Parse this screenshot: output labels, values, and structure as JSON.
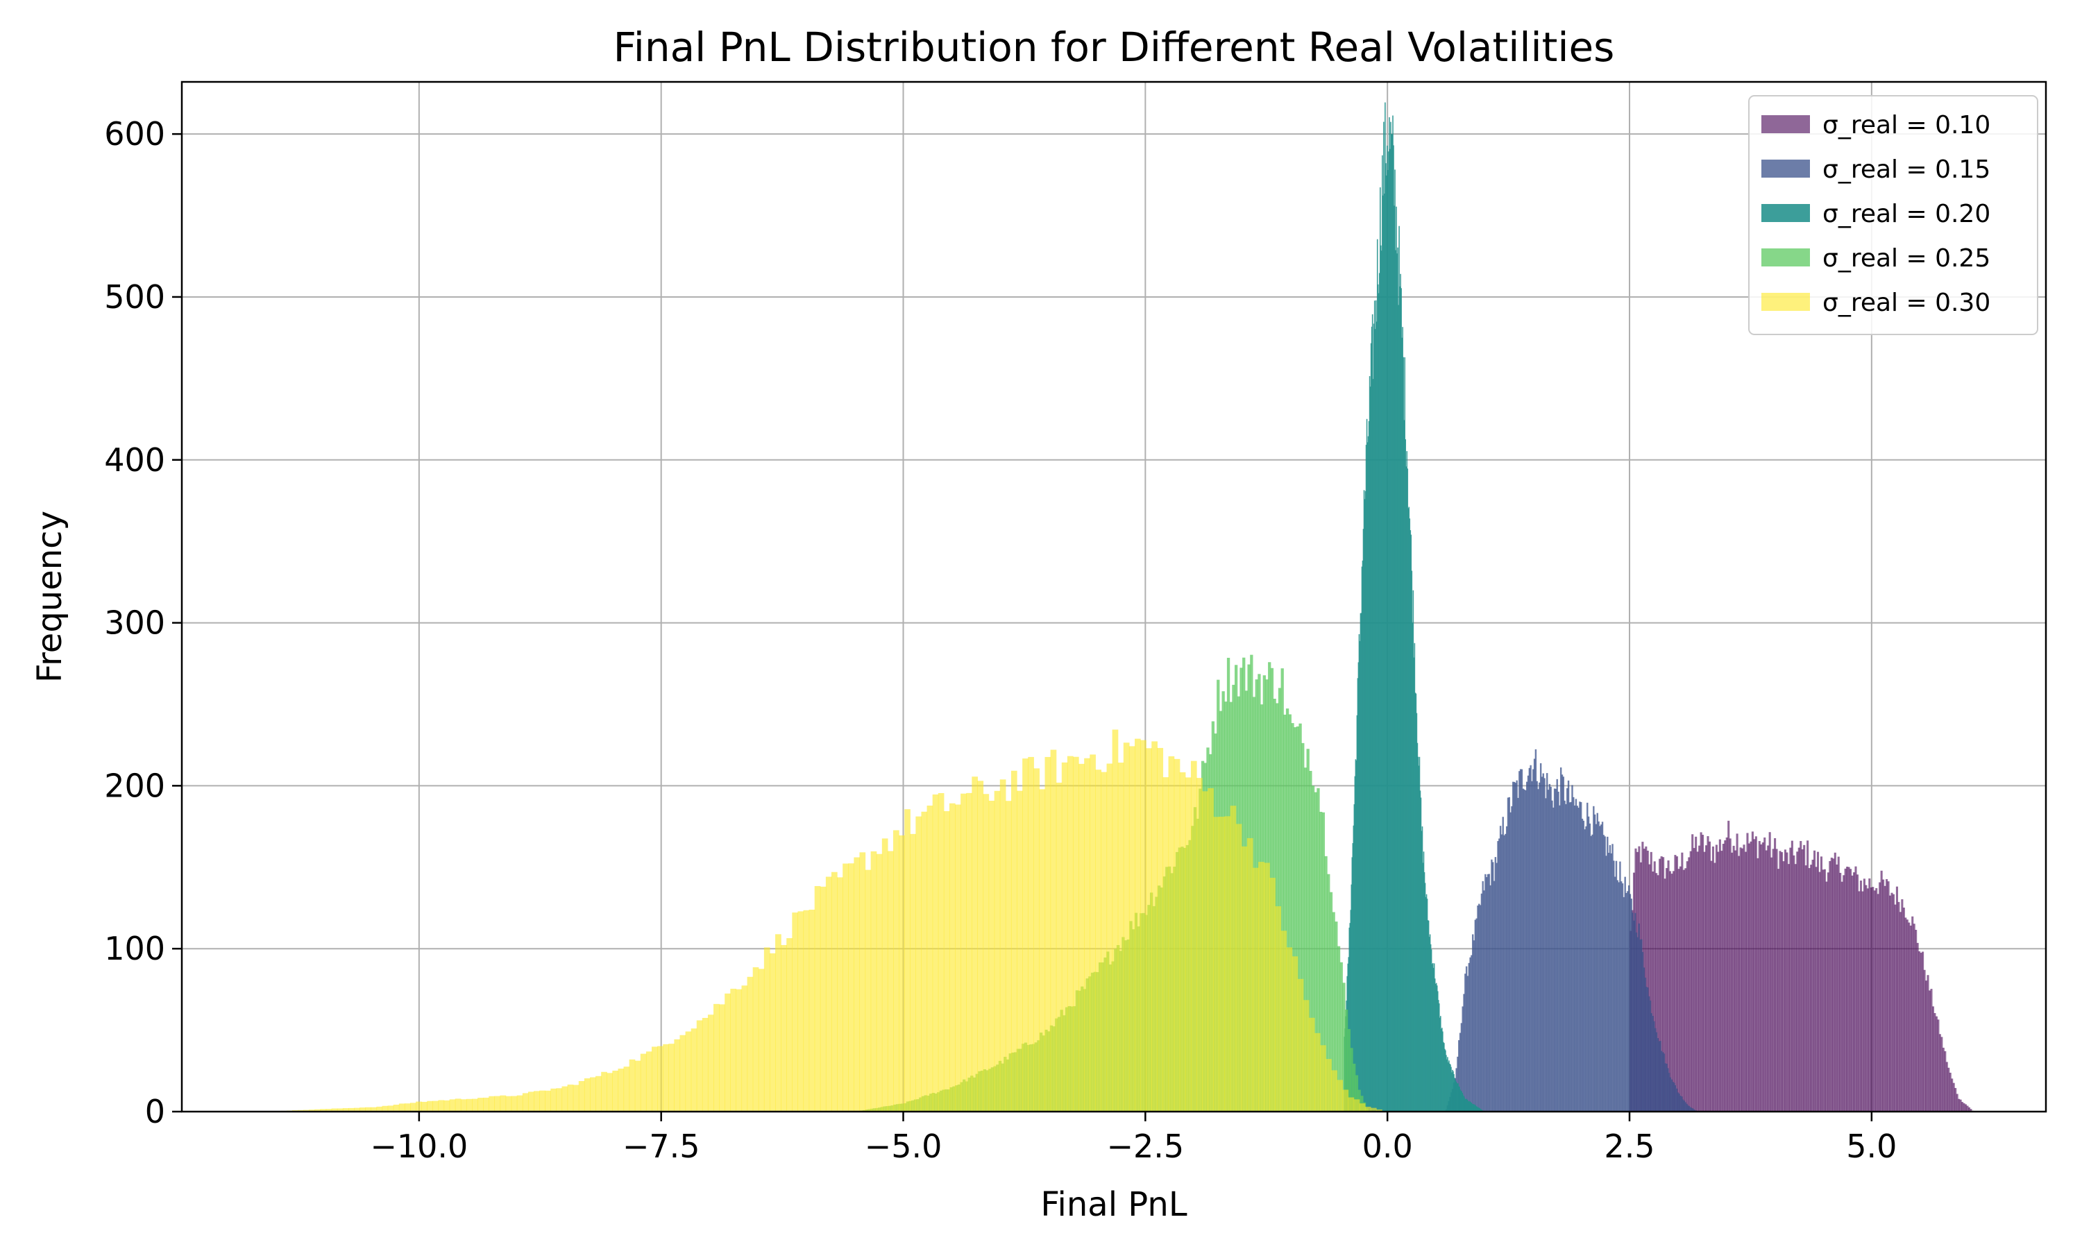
{
  "chart_data": {
    "type": "histogram",
    "title": "Final PnL Distribution for Different Real Volatilities",
    "xlabel": "Final PnL",
    "ylabel": "Frequency",
    "xlim": [
      -12.45,
      6.8
    ],
    "ylim": [
      0,
      632
    ],
    "xticks": [
      -10.0,
      -7.5,
      -5.0,
      -2.5,
      0.0,
      2.5,
      5.0
    ],
    "xtick_labels": [
      "−10.0",
      "−7.5",
      "−5.0",
      "−2.5",
      "0.0",
      "2.5",
      "5.0"
    ],
    "yticks": [
      0,
      100,
      200,
      300,
      400,
      500,
      600
    ],
    "ytick_labels": [
      "0",
      "100",
      "200",
      "300",
      "400",
      "500",
      "600"
    ],
    "grid": true,
    "legend_position": "upper-right",
    "series": [
      {
        "name": "σ_real = 0.10",
        "color": "#440154",
        "opacity": 0.6,
        "outline": [
          [
            2.5,
            0
          ],
          [
            2.5,
            100
          ],
          [
            2.55,
            150
          ],
          [
            2.6,
            160
          ],
          [
            2.8,
            150
          ],
          [
            3.0,
            150
          ],
          [
            3.2,
            165
          ],
          [
            3.4,
            160
          ],
          [
            3.5,
            170
          ],
          [
            3.7,
            165
          ],
          [
            3.9,
            165
          ],
          [
            4.1,
            155
          ],
          [
            4.3,
            160
          ],
          [
            4.5,
            150
          ],
          [
            4.7,
            150
          ],
          [
            4.9,
            140
          ],
          [
            5.1,
            140
          ],
          [
            5.3,
            130
          ],
          [
            5.4,
            120
          ],
          [
            5.5,
            100
          ],
          [
            5.6,
            75
          ],
          [
            5.7,
            50
          ],
          [
            5.8,
            25
          ],
          [
            5.9,
            8
          ],
          [
            6.0,
            3
          ],
          [
            6.05,
            0
          ]
        ]
      },
      {
        "name": "σ_real = 0.15",
        "color": "#3b528b",
        "opacity": 0.75,
        "outline": [
          [
            0.6,
            0
          ],
          [
            0.7,
            20
          ],
          [
            0.8,
            80
          ],
          [
            0.9,
            110
          ],
          [
            1.0,
            140
          ],
          [
            1.1,
            150
          ],
          [
            1.2,
            175
          ],
          [
            1.3,
            195
          ],
          [
            1.4,
            205
          ],
          [
            1.5,
            215
          ],
          [
            1.6,
            205
          ],
          [
            1.7,
            195
          ],
          [
            1.8,
            200
          ],
          [
            1.9,
            190
          ],
          [
            2.0,
            185
          ],
          [
            2.1,
            180
          ],
          [
            2.2,
            170
          ],
          [
            2.3,
            160
          ],
          [
            2.4,
            145
          ],
          [
            2.5,
            130
          ],
          [
            2.6,
            110
          ],
          [
            2.7,
            70
          ],
          [
            2.8,
            45
          ],
          [
            2.9,
            25
          ],
          [
            3.0,
            12
          ],
          [
            3.1,
            4
          ],
          [
            3.2,
            0
          ]
        ]
      },
      {
        "name": "σ_real = 0.20",
        "color": "#21918c",
        "opacity": 0.88,
        "outline": [
          [
            -0.45,
            0
          ],
          [
            -0.45,
            40
          ],
          [
            -0.4,
            100
          ],
          [
            -0.35,
            180
          ],
          [
            -0.3,
            270
          ],
          [
            -0.25,
            360
          ],
          [
            -0.2,
            420
          ],
          [
            -0.15,
            470
          ],
          [
            -0.1,
            520
          ],
          [
            -0.05,
            575
          ],
          [
            0.0,
            600
          ],
          [
            0.05,
            585
          ],
          [
            0.1,
            540
          ],
          [
            0.15,
            475
          ],
          [
            0.2,
            410
          ],
          [
            0.25,
            330
          ],
          [
            0.3,
            250
          ],
          [
            0.35,
            175
          ],
          [
            0.4,
            130
          ],
          [
            0.45,
            100
          ],
          [
            0.5,
            80
          ],
          [
            0.55,
            55
          ],
          [
            0.6,
            35
          ],
          [
            0.7,
            20
          ],
          [
            0.8,
            8
          ],
          [
            1.0,
            0
          ]
        ]
      },
      {
        "name": "σ_real = 0.25",
        "color": "#5ec962",
        "opacity": 0.75,
        "outline": [
          [
            -5.5,
            0
          ],
          [
            -5.0,
            5
          ],
          [
            -4.5,
            15
          ],
          [
            -4.0,
            30
          ],
          [
            -3.5,
            50
          ],
          [
            -3.0,
            85
          ],
          [
            -2.5,
            125
          ],
          [
            -2.0,
            175
          ],
          [
            -1.8,
            240
          ],
          [
            -1.7,
            265
          ],
          [
            -1.5,
            270
          ],
          [
            -1.3,
            265
          ],
          [
            -1.1,
            265
          ],
          [
            -1.0,
            235
          ],
          [
            -0.8,
            220
          ],
          [
            -0.7,
            195
          ],
          [
            -0.6,
            150
          ],
          [
            -0.5,
            100
          ],
          [
            -0.4,
            50
          ],
          [
            -0.3,
            15
          ],
          [
            -0.2,
            0
          ]
        ]
      },
      {
        "name": "σ_real = 0.30",
        "color": "#fde725",
        "opacity": 0.6,
        "outline": [
          [
            -11.6,
            0
          ],
          [
            -11.2,
            1
          ],
          [
            -10.8,
            2
          ],
          [
            -10.4,
            3
          ],
          [
            -10.0,
            6
          ],
          [
            -9.5,
            8
          ],
          [
            -9.0,
            10
          ],
          [
            -8.5,
            15
          ],
          [
            -8.0,
            25
          ],
          [
            -7.5,
            40
          ],
          [
            -7.0,
            60
          ],
          [
            -6.5,
            90
          ],
          [
            -6.0,
            125
          ],
          [
            -5.5,
            150
          ],
          [
            -5.0,
            175
          ],
          [
            -4.5,
            190
          ],
          [
            -4.0,
            200
          ],
          [
            -3.5,
            210
          ],
          [
            -3.0,
            220
          ],
          [
            -2.5,
            225
          ],
          [
            -2.0,
            205
          ],
          [
            -1.5,
            175
          ],
          [
            -1.2,
            140
          ],
          [
            -1.0,
            100
          ],
          [
            -0.8,
            60
          ],
          [
            -0.6,
            30
          ],
          [
            -0.4,
            10
          ],
          [
            -0.2,
            3
          ],
          [
            0.0,
            0
          ]
        ]
      }
    ]
  }
}
